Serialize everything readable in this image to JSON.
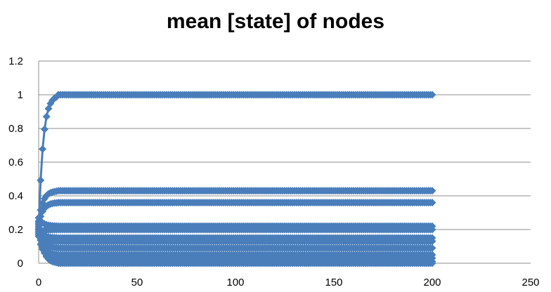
{
  "chart_data": {
    "type": "scatter",
    "title": "mean [state] of nodes",
    "xlabel": "",
    "ylabel": "",
    "xlim": [
      0,
      250
    ],
    "ylim": [
      0,
      1.2
    ],
    "x_ticks": [
      0,
      50,
      100,
      150,
      200,
      250
    ],
    "y_ticks": [
      0,
      0.2,
      0.4,
      0.6,
      0.8,
      1,
      1.2
    ],
    "y_tick_labels": [
      "0",
      "0.2",
      "0.4",
      "0.6",
      "0.8",
      "1",
      "1.2"
    ],
    "grid": "horizontal",
    "legend": "none",
    "marker": "diamond",
    "color": "#4a7ebb",
    "series": [
      {
        "x_start": 0,
        "x_end": 200,
        "y_steady": 1.0,
        "y_initial": 0.2
      },
      {
        "x_start": 0,
        "x_end": 200,
        "y_steady": 0.43,
        "y_initial": 0.25
      },
      {
        "x_start": 0,
        "x_end": 200,
        "y_steady": 0.36,
        "y_initial": 0.23
      },
      {
        "x_start": 0,
        "x_end": 200,
        "y_steady": 0.22,
        "y_initial": 0.27
      },
      {
        "x_start": 0,
        "x_end": 200,
        "y_steady": 0.2,
        "y_initial": 0.18
      },
      {
        "x_start": 0,
        "x_end": 200,
        "y_steady": 0.15,
        "y_initial": 0.2
      },
      {
        "x_start": 0,
        "x_end": 200,
        "y_steady": 0.13,
        "y_initial": 0.17
      },
      {
        "x_start": 0,
        "x_end": 200,
        "y_steady": 0.09,
        "y_initial": 0.22
      },
      {
        "x_start": 0,
        "x_end": 200,
        "y_steady": 0.05,
        "y_initial": 0.19
      },
      {
        "x_start": 0,
        "x_end": 200,
        "y_steady": 0.03,
        "y_initial": 0.16
      },
      {
        "x_start": 0,
        "x_end": 200,
        "y_steady": 0.01,
        "y_initial": 0.21
      },
      {
        "x_start": 0,
        "x_end": 200,
        "y_steady": 0.0,
        "y_initial": 0.24
      }
    ]
  }
}
